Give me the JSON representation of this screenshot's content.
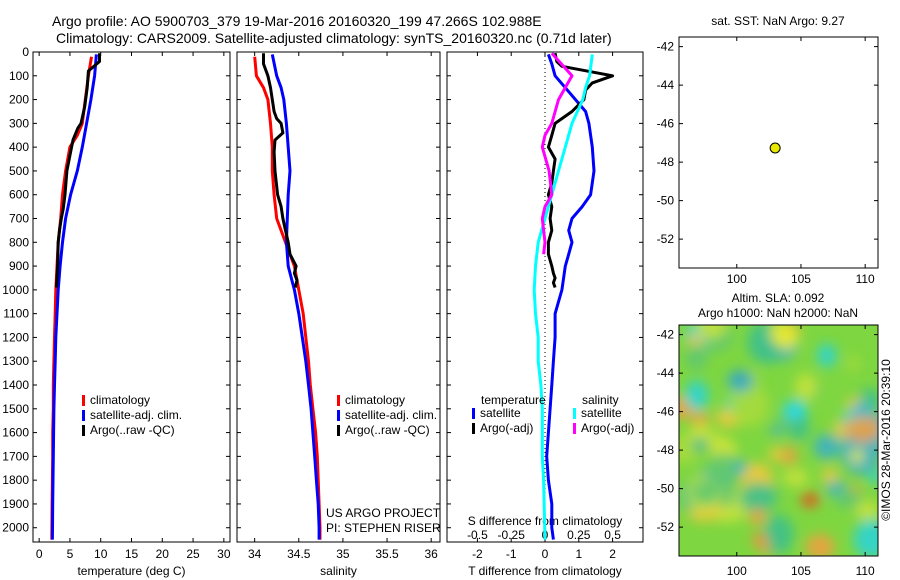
{
  "header": {
    "title_line1": "Argo profile: AO 5900703_379 19-Mar-2016 20160320_199 47.266S 102.988E",
    "title_line2": "Climatology: CARS2009. Satellite-adjusted climatology: synTS_20160320.nc (0.71d later)"
  },
  "colors": {
    "climatology": "#ff0000",
    "satellite": "#0000ff",
    "argo": "#000000",
    "satellite_salinity": "#00ffff",
    "argo_salinity": "#ff00ff",
    "marker": "#e8e800"
  },
  "chart_data": [
    {
      "type": "line",
      "id": "temperature-profile",
      "xlabel": "temperature (deg C)",
      "xlim": [
        -1,
        31
      ],
      "xticks": [
        0,
        5,
        10,
        15,
        20,
        25,
        30
      ],
      "ylim": [
        2060,
        0
      ],
      "yticks": [
        0,
        100,
        200,
        300,
        400,
        500,
        600,
        700,
        800,
        900,
        1000,
        1100,
        1200,
        1300,
        1400,
        1500,
        1600,
        1700,
        1800,
        1900,
        2000
      ],
      "legend": [
        "climatology",
        "satellite-adj. clim.",
        "Argo(..raw -QC)"
      ],
      "series": [
        {
          "name": "climatology",
          "color": "#ff0000",
          "x": [
            8.5,
            8.0,
            7.5,
            7.0,
            6.2,
            5.0,
            4.3,
            3.8,
            3.5,
            3.1,
            2.9,
            2.7,
            2.6,
            2.5,
            2.4,
            2.3,
            2.3,
            2.2,
            2.2,
            2.15,
            2.1,
            2.05
          ],
          "y": [
            20,
            100,
            200,
            300,
            350,
            400,
            500,
            600,
            700,
            800,
            900,
            1000,
            1100,
            1200,
            1300,
            1400,
            1500,
            1600,
            1700,
            1800,
            1900,
            2050
          ]
        },
        {
          "name": "satellite-adj. clim.",
          "color": "#0000ff",
          "x": [
            9.3,
            9.0,
            8.4,
            7.7,
            7.0,
            6.2,
            5.1,
            4.3,
            3.8,
            3.4,
            3.1,
            2.9,
            2.7,
            2.6,
            2.5,
            2.4,
            2.35,
            2.3,
            2.25,
            2.2,
            2.15
          ],
          "y": [
            10,
            100,
            200,
            300,
            400,
            500,
            600,
            700,
            800,
            900,
            1000,
            1100,
            1200,
            1300,
            1400,
            1500,
            1600,
            1700,
            1800,
            1900,
            2050
          ]
        },
        {
          "name": "Argo(..raw -QC)",
          "color": "#000000",
          "x": [
            9.8,
            9.8,
            8.0,
            7.8,
            7.4,
            6.8,
            6.3,
            5.5,
            5.1,
            4.5,
            4.2,
            3.9,
            3.6,
            3.3,
            3.1,
            3.0,
            2.9,
            2.8
          ],
          "y": [
            5,
            40,
            80,
            150,
            230,
            300,
            320,
            370,
            420,
            500,
            600,
            660,
            700,
            750,
            800,
            900,
            950,
            990
          ]
        }
      ]
    },
    {
      "type": "line",
      "id": "salinity-profile",
      "xlabel": "salinity",
      "xlim": [
        33.8,
        36.1
      ],
      "xticks": [
        34,
        34.5,
        35,
        35.5,
        36
      ],
      "ylim": [
        2060,
        0
      ],
      "legend": [
        "climatology",
        "satellite-adj. clim.",
        "Argo(..raw -QC)"
      ],
      "annotations": [
        "US ARGO PROJECT",
        "PI: STEPHEN RISER"
      ],
      "series": [
        {
          "name": "climatology",
          "color": "#ff0000",
          "x": [
            34.0,
            34.02,
            34.1,
            34.15,
            34.18,
            34.2,
            34.2,
            34.22,
            34.25,
            34.35,
            34.45,
            34.5,
            34.55,
            34.58,
            34.61,
            34.63,
            34.66,
            34.69,
            34.71,
            34.72,
            34.73,
            34.74,
            34.74
          ],
          "y": [
            20,
            100,
            150,
            200,
            300,
            400,
            500,
            600,
            700,
            800,
            900,
            1000,
            1100,
            1200,
            1300,
            1400,
            1500,
            1600,
            1700,
            1800,
            1900,
            2000,
            2050
          ]
        },
        {
          "name": "satellite-adj. clim.",
          "color": "#0000ff",
          "x": [
            34.2,
            34.25,
            34.3,
            34.33,
            34.36,
            34.38,
            34.4,
            34.38,
            34.37,
            34.36,
            34.38,
            34.45,
            34.5,
            34.54,
            34.58,
            34.61,
            34.64,
            34.66,
            34.68,
            34.7,
            34.72,
            34.73,
            34.73
          ],
          "y": [
            10,
            100,
            150,
            200,
            300,
            400,
            500,
            600,
            700,
            800,
            900,
            1000,
            1100,
            1200,
            1300,
            1400,
            1500,
            1600,
            1700,
            1800,
            1900,
            2000,
            2050
          ]
        },
        {
          "name": "Argo(..raw -QC)",
          "color": "#000000",
          "x": [
            34.1,
            34.1,
            34.15,
            34.18,
            34.2,
            34.22,
            34.25,
            34.3,
            34.32,
            34.23,
            34.22,
            34.23,
            34.26,
            34.3,
            34.32,
            34.35,
            34.38,
            34.4,
            34.47,
            34.45,
            34.48,
            34.46
          ],
          "y": [
            5,
            50,
            100,
            150,
            200,
            250,
            280,
            300,
            340,
            370,
            420,
            500,
            600,
            650,
            700,
            750,
            800,
            850,
            900,
            930,
            960,
            990
          ]
        }
      ]
    },
    {
      "type": "line",
      "id": "difference-profile",
      "xlabel": "T difference from climatology",
      "x2label": "S difference from climatology",
      "xlim": [
        -2.9,
        2.9
      ],
      "xticks": [
        -2,
        -1,
        0,
        1,
        2
      ],
      "x2lim": [
        -0.725,
        0.725
      ],
      "x2ticks": [
        -0.5,
        -0.25,
        0,
        0.25,
        0.5
      ],
      "ylim": [
        2060,
        0
      ],
      "legend_headers": [
        "temperature",
        "salinity"
      ],
      "legend": [
        "satellite",
        "Argo(-adj)",
        "satellite",
        "Argo(-adj)"
      ],
      "series": [
        {
          "name": "temperature satellite",
          "color": "#0000ff",
          "units": "T",
          "x": [
            0.1,
            0.2,
            0.3,
            0.6,
            1.2,
            1.3,
            1.4,
            1.45,
            1.35,
            1.1,
            0.8,
            0.7,
            0.8,
            0.7,
            0.6,
            0.5,
            0.3,
            0.3,
            0.25,
            0.2,
            0.15,
            0.1,
            0.05,
            0.1,
            0.2,
            0.2,
            0.25
          ],
          "y": [
            10,
            50,
            100,
            150,
            250,
            300,
            400,
            500,
            600,
            650,
            700,
            750,
            800,
            850,
            900,
            1000,
            1100,
            1200,
            1300,
            1400,
            1500,
            1600,
            1700,
            1800,
            1900,
            2000,
            2050
          ]
        },
        {
          "name": "temperature Argo(-adj)",
          "color": "#000000",
          "units": "T",
          "x": [
            0.3,
            0.35,
            0.5,
            2.0,
            1.4,
            1.2,
            1.15,
            0.8,
            0.3,
            0.2,
            0.1,
            0.3,
            0.25,
            0.2,
            0.1,
            0.2,
            0.15,
            0.2,
            0.1,
            0.1,
            0.2,
            0.25,
            0.3,
            0.25,
            0.3
          ],
          "y": [
            5,
            40,
            60,
            100,
            130,
            160,
            200,
            250,
            300,
            350,
            400,
            450,
            500,
            550,
            600,
            650,
            700,
            750,
            800,
            850,
            900,
            930,
            950,
            970,
            990
          ]
        },
        {
          "name": "salinity satellite",
          "color": "#00ffff",
          "units": "S",
          "x": [
            0.35,
            0.33,
            0.3,
            0.28,
            0.2,
            0.15,
            0.1,
            0.05,
            0.0,
            -0.05,
            -0.07,
            -0.08,
            -0.07,
            -0.05,
            -0.05,
            -0.03,
            -0.02,
            -0.02,
            -0.02,
            -0.01,
            0.0
          ],
          "y": [
            10,
            100,
            150,
            200,
            300,
            400,
            500,
            600,
            700,
            800,
            900,
            1000,
            1100,
            1200,
            1300,
            1400,
            1500,
            1600,
            1700,
            1800,
            2050
          ]
        },
        {
          "name": "salinity Argo(-adj)",
          "color": "#ff00ff",
          "units": "S",
          "x": [
            0.05,
            0.2,
            0.1,
            0.05,
            0.0,
            -0.02,
            0.03,
            0.05,
            0.0,
            -0.02,
            -0.01,
            0.0,
            -0.01
          ],
          "y": [
            5,
            100,
            200,
            300,
            350,
            400,
            500,
            600,
            650,
            700,
            750,
            800,
            850
          ]
        }
      ]
    },
    {
      "type": "scatter",
      "id": "sst-map",
      "title": "sat. SST: NaN Argo: 9.27",
      "xlim": [
        95.5,
        111
      ],
      "xticks": [
        100,
        105,
        110
      ],
      "ylim": [
        -53.5,
        -41.5
      ],
      "yticks": [
        -42,
        -44,
        -46,
        -48,
        -50,
        -52
      ],
      "points": [
        {
          "x": 102.988,
          "y": -47.266
        }
      ]
    },
    {
      "type": "heatmap",
      "id": "altimetry-map",
      "title_line1": "Altim. SLA: 0.092",
      "title_line2": "Argo h1000: NaN h2000: NaN",
      "xlim": [
        95.5,
        111
      ],
      "xticks": [
        100,
        105,
        110
      ],
      "ylim": [
        -53.5,
        -41.5
      ],
      "yticks": [
        -42,
        -44,
        -46,
        -48,
        -50,
        -52
      ],
      "side_label": "©IMOS 28-Mar-2016 20:39:10"
    }
  ]
}
